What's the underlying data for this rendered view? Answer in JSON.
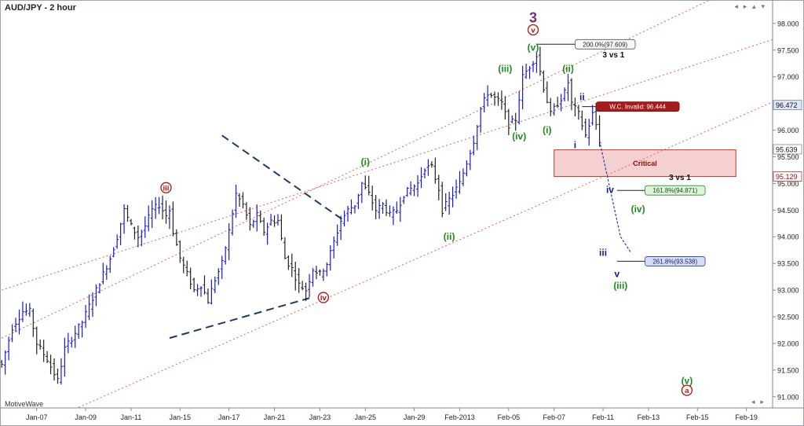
{
  "window": {
    "title": "AUD/JPY - 2 hour",
    "watermark": "MotiveWave",
    "corner_buttons": "◂ ▸ ▴ ▾",
    "scroll_buttons": "◂ ▸"
  },
  "colors": {
    "up": "#1a1acc",
    "down": "#222222",
    "channel": "#e06060",
    "dash": "#1f3a66",
    "green": "#1f8a1f",
    "red": "#9b1b1b",
    "navy": "#1b1b8a",
    "purple": "#7b2a8a"
  },
  "chart_data": {
    "type": "candlestick",
    "title": "AUD/JPY - 2 hour",
    "ylim": [
      90.79,
      98.44
    ],
    "y_ticks": [
      91.0,
      91.5,
      92.0,
      92.5,
      93.0,
      93.5,
      94.0,
      94.5,
      95.0,
      95.5,
      96.0,
      96.5,
      97.0,
      97.5,
      98.0
    ],
    "y_tick_labels": [
      "91.000",
      "91.500",
      "92.000",
      "92.500",
      "93.000",
      "93.500",
      "94.000",
      "94.500",
      "95.000",
      "95.500",
      "96.000",
      "96.500",
      "97.000",
      "97.500",
      "98.000"
    ],
    "x_ticks": [
      "Jan-07",
      "Jan-09",
      "Jan-11",
      "Jan-15",
      "Jan-17",
      "Jan-21",
      "Jan-23",
      "Jan-25",
      "Jan-29",
      "Feb-2013",
      "Feb-05",
      "Feb-07",
      "Feb-11",
      "Feb-13",
      "Feb-15",
      "Feb-19"
    ],
    "x_tick_index": [
      10,
      24,
      37,
      51,
      65,
      78,
      91,
      104,
      118,
      131,
      145,
      158,
      172,
      185,
      199,
      213
    ],
    "price_path": [
      [
        0,
        91.6
      ],
      [
        3,
        92.3
      ],
      [
        6,
        92.6
      ],
      [
        8,
        92.6
      ],
      [
        10,
        92.0
      ],
      [
        13,
        91.7
      ],
      [
        16,
        91.3
      ],
      [
        18,
        91.9
      ],
      [
        21,
        92.2
      ],
      [
        23,
        92.4
      ],
      [
        25,
        92.7
      ],
      [
        27,
        93.0
      ],
      [
        29,
        93.3
      ],
      [
        31,
        93.6
      ],
      [
        33,
        94.0
      ],
      [
        35,
        94.5
      ],
      [
        37,
        94.2
      ],
      [
        39,
        94.0
      ],
      [
        41,
        94.2
      ],
      [
        43,
        94.5
      ],
      [
        45,
        94.6
      ],
      [
        47,
        94.4
      ],
      [
        48,
        94.5
      ],
      [
        49,
        94.1
      ],
      [
        51,
        93.6
      ],
      [
        53,
        93.3
      ],
      [
        55,
        93.0
      ],
      [
        57,
        93.1
      ],
      [
        59,
        92.8
      ],
      [
        61,
        93.2
      ],
      [
        63,
        93.5
      ],
      [
        65,
        94.1
      ],
      [
        67,
        94.8
      ],
      [
        69,
        94.6
      ],
      [
        71,
        94.2
      ],
      [
        73,
        94.4
      ],
      [
        75,
        94.1
      ],
      [
        77,
        94.3
      ],
      [
        79,
        94.3
      ],
      [
        81,
        93.6
      ],
      [
        83,
        93.4
      ],
      [
        85,
        93.1
      ],
      [
        87,
        93.0
      ],
      [
        89,
        93.4
      ],
      [
        91,
        93.3
      ],
      [
        93,
        93.5
      ],
      [
        95,
        93.9
      ],
      [
        97,
        94.3
      ],
      [
        99,
        94.5
      ],
      [
        101,
        94.6
      ],
      [
        103,
        95.0
      ],
      [
        105,
        94.8
      ],
      [
        107,
        94.5
      ],
      [
        109,
        94.6
      ],
      [
        111,
        94.4
      ],
      [
        113,
        94.5
      ],
      [
        115,
        94.8
      ],
      [
        117,
        94.9
      ],
      [
        119,
        95.0
      ],
      [
        121,
        95.3
      ],
      [
        123,
        95.3
      ],
      [
        125,
        94.9
      ],
      [
        126,
        94.5
      ],
      [
        127,
        94.6
      ],
      [
        129,
        94.8
      ],
      [
        131,
        95.0
      ],
      [
        133,
        95.4
      ],
      [
        135,
        95.8
      ],
      [
        137,
        96.4
      ],
      [
        139,
        96.7
      ],
      [
        141,
        96.6
      ],
      [
        143,
        96.5
      ],
      [
        145,
        96.1
      ],
      [
        147,
        96.2
      ],
      [
        149,
        97.0
      ],
      [
        151,
        97.2
      ],
      [
        153,
        97.4
      ],
      [
        155,
        96.8
      ],
      [
        157,
        96.3
      ],
      [
        159,
        96.5
      ],
      [
        161,
        96.7
      ],
      [
        162,
        96.9
      ],
      [
        163,
        96.5
      ],
      [
        165,
        96.3
      ],
      [
        167,
        95.9
      ],
      [
        169,
        96.3
      ],
      [
        170,
        96.1
      ],
      [
        171,
        95.8
      ]
    ],
    "projection": [
      [
        171,
        95.8
      ],
      [
        174,
        94.9
      ],
      [
        177,
        94.0
      ],
      [
        180,
        93.7
      ]
    ],
    "wave_labels": [
      {
        "text": "3",
        "idx": 152,
        "price": 98.08,
        "style": "plain-purple"
      },
      {
        "text": "v",
        "idx": 152,
        "price": 97.88,
        "style": "circle-red"
      },
      {
        "text": "(v)",
        "idx": 152,
        "price": 97.55,
        "style": "green"
      },
      {
        "text": "(iii)",
        "idx": 144,
        "price": 97.15,
        "style": "green"
      },
      {
        "text": "(ii)",
        "idx": 162,
        "price": 97.15,
        "style": "green"
      },
      {
        "text": "(iv)",
        "idx": 148,
        "price": 95.88,
        "style": "green"
      },
      {
        "text": "(i)",
        "idx": 156,
        "price": 96.0,
        "style": "green"
      },
      {
        "text": "ii",
        "idx": 166,
        "price": 96.62,
        "style": "navy"
      },
      {
        "text": "i",
        "idx": 164,
        "price": 95.72,
        "style": "navy"
      },
      {
        "text": "iv",
        "idx": 174,
        "price": 94.88,
        "style": "navy"
      },
      {
        "text": "iii",
        "idx": 172,
        "price": 93.7,
        "style": "navy"
      },
      {
        "text": "v",
        "idx": 176,
        "price": 93.3,
        "style": "navy"
      },
      {
        "text": "(iv)",
        "idx": 182,
        "price": 94.52,
        "style": "green"
      },
      {
        "text": "(iii)",
        "idx": 177,
        "price": 93.08,
        "style": "green"
      },
      {
        "text": "(i)",
        "idx": 104,
        "price": 95.4,
        "style": "green"
      },
      {
        "text": "(ii)",
        "idx": 128,
        "price": 94.0,
        "style": "green"
      },
      {
        "text": "iii",
        "idx": 47,
        "price": 94.92,
        "style": "circle-red"
      },
      {
        "text": "iv",
        "idx": 92,
        "price": 92.86,
        "style": "circle-red"
      },
      {
        "text": "(v)",
        "idx": 196,
        "price": 91.3,
        "style": "green"
      },
      {
        "text": "a",
        "idx": 196,
        "price": 91.12,
        "style": "circle-red"
      },
      {
        "text": "3 vs 1",
        "idx": 175,
        "price": 97.42,
        "style": "black"
      },
      {
        "text": "3 vs 1",
        "idx": 194,
        "price": 95.12,
        "style": "black"
      }
    ],
    "annotations": [
      {
        "text": "200.0%(97.609)",
        "idx": 164,
        "price": 97.61,
        "style": "white",
        "line_from": 153
      },
      {
        "text": "W.C. Invalid: 96.444",
        "idx": 170,
        "price": 96.44,
        "style": "red",
        "line_from": 166
      },
      {
        "text": "161.8%(94.871)",
        "idx": 184,
        "price": 94.87,
        "style": "green",
        "line_from": 176
      },
      {
        "text": "261.8%(93.538)",
        "idx": 184,
        "price": 93.54,
        "style": "blue",
        "line_from": 176
      }
    ],
    "price_markers": [
      {
        "text": "96.472",
        "price": 96.47,
        "style": "blue"
      },
      {
        "text": "95.639",
        "price": 95.64,
        "style": "white"
      },
      {
        "text": "95.129",
        "price": 95.13,
        "style": "red"
      }
    ],
    "critical_zone": {
      "label": "Critical",
      "idx_from": 158,
      "idx_to": 210,
      "price_high": 95.63,
      "price_low": 95.13
    },
    "channel_lines": [
      {
        "p1": [
          0,
          93.0
        ],
        "p2": [
          230,
          97.9
        ],
        "style": "channel"
      },
      {
        "p1": [
          22,
          90.8
        ],
        "p2": [
          230,
          96.8
        ],
        "style": "channel"
      },
      {
        "p1": [
          0,
          92.1
        ],
        "p2": [
          230,
          99.3
        ],
        "style": "channel"
      }
    ],
    "triangle_lines": [
      {
        "p1": [
          63,
          95.9
        ],
        "p2": [
          98,
          94.3
        ]
      },
      {
        "p1": [
          48,
          92.1
        ],
        "p2": [
          88,
          92.85
        ]
      }
    ]
  }
}
